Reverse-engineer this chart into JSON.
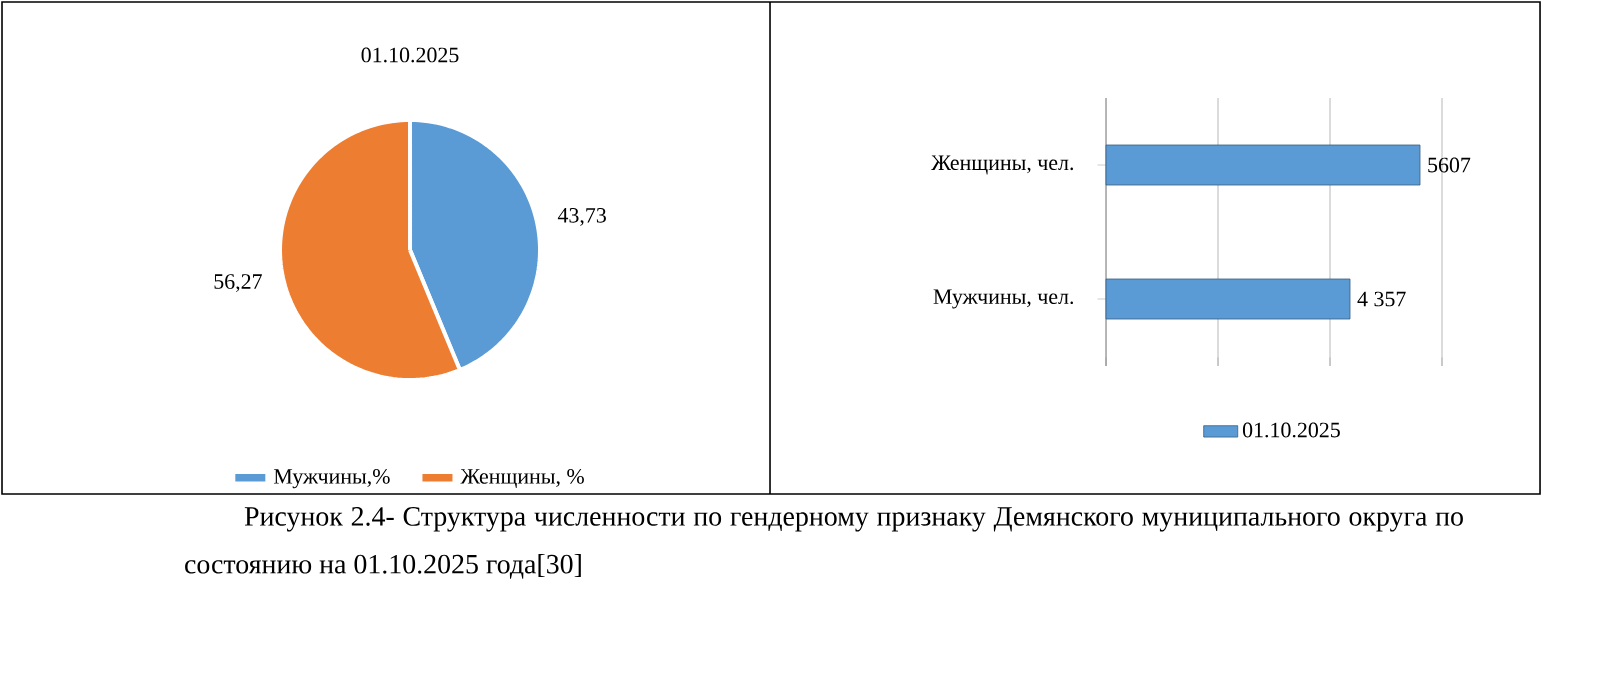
{
  "chart_data": [
    {
      "type": "pie",
      "title": "01.10.2025",
      "categories": [
        "Мужчины,%",
        "Женщины, %"
      ],
      "values": [
        43.73,
        56.27
      ],
      "colors": [
        "#5b9bd5",
        "#ed7d31"
      ],
      "value_labels": [
        "43,73",
        "56,27"
      ],
      "legend": "bottom",
      "annotations": [
        "Рисунок 2.4- Структура численности по гендерному признаку Демянского муниципального округа по состоянию на 01.10.2025 года[30]"
      ]
    },
    {
      "type": "bar",
      "orientation": "horizontal",
      "categories": [
        "Женщины, чел.",
        "Мужчины, чел."
      ],
      "series": [
        {
          "name": "01.10.2025",
          "color": "#5b9bd5",
          "values": [
            5607,
            4357
          ],
          "value_labels": [
            "5607",
            "4 357"
          ]
        }
      ],
      "xlim": [
        0,
        6000
      ],
      "xticks": [
        {
          "value": 0,
          "label": null
        },
        {
          "value": 2000,
          "label": null
        },
        {
          "value": 4000,
          "label": null
        },
        {
          "value": 6000,
          "label": null
        }
      ],
      "grid": "x",
      "legend": "bottom",
      "tick_labels": "y"
    }
  ]
}
